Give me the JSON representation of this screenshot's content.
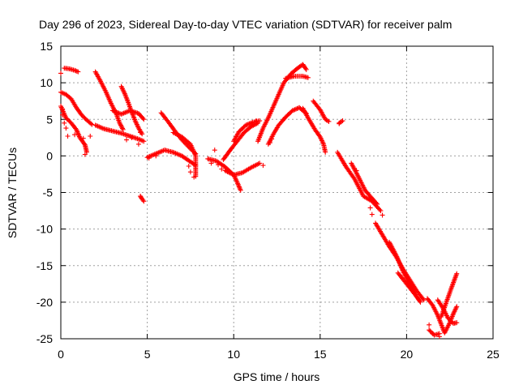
{
  "chart_data": {
    "type": "scatter",
    "title": "Day 296 of 2023, Sidereal Day-to-day VTEC variation (SDTVAR) for receiver palm",
    "xlabel": "GPS time / hours",
    "ylabel": "SDTVAR / TECUs",
    "xlim": [
      0,
      25
    ],
    "ylim": [
      -25,
      15
    ],
    "x_ticks": [
      0,
      5,
      10,
      15,
      20,
      25
    ],
    "y_ticks": [
      -25,
      -20,
      -15,
      -10,
      -5,
      0,
      5,
      10,
      15
    ],
    "grid": true,
    "legend": "none",
    "marker": "+",
    "series": [
      {
        "name": "SDTVAR",
        "color": "#ff0000",
        "segments": [
          [
            [
              0.0,
              6.8
            ],
            [
              0.3,
              5.2
            ],
            [
              0.6,
              4.5
            ],
            [
              0.9,
              3.6
            ],
            [
              1.1,
              2.5
            ],
            [
              1.4,
              1.5
            ],
            [
              1.5,
              0.5
            ]
          ],
          [
            [
              0.0,
              8.7
            ],
            [
              0.3,
              8.4
            ],
            [
              0.6,
              7.8
            ],
            [
              0.9,
              6.6
            ],
            [
              1.2,
              5.6
            ],
            [
              1.5,
              4.9
            ],
            [
              1.8,
              4.3
            ]
          ],
          [
            [
              0.2,
              12.0
            ],
            [
              0.5,
              11.9
            ],
            [
              0.8,
              11.7
            ],
            [
              1.0,
              11.5
            ]
          ],
          [
            [
              2.0,
              4.2
            ],
            [
              2.5,
              3.7
            ],
            [
              3.0,
              3.4
            ],
            [
              3.5,
              3.1
            ],
            [
              4.0,
              2.7
            ],
            [
              4.5,
              2.3
            ],
            [
              4.8,
              2.0
            ]
          ],
          [
            [
              2.0,
              11.5
            ],
            [
              2.3,
              10.2
            ],
            [
              2.6,
              8.8
            ],
            [
              2.9,
              7.2
            ],
            [
              3.2,
              5.8
            ],
            [
              3.4,
              4.5
            ],
            [
              3.6,
              3.6
            ]
          ],
          [
            [
              3.5,
              9.5
            ],
            [
              3.7,
              8.5
            ],
            [
              3.9,
              7.3
            ],
            [
              4.1,
              6.0
            ],
            [
              4.3,
              4.8
            ],
            [
              4.5,
              3.8
            ],
            [
              4.7,
              3.0
            ]
          ],
          [
            [
              3.0,
              6.2
            ],
            [
              3.5,
              5.7
            ],
            [
              4.0,
              6.2
            ],
            [
              4.5,
              5.8
            ],
            [
              4.8,
              5.0
            ]
          ],
          [
            [
              4.6,
              -5.5
            ],
            [
              4.7,
              -5.9
            ],
            [
              4.8,
              -6.2
            ]
          ],
          [
            [
              5.0,
              -0.2
            ],
            [
              5.5,
              0.3
            ],
            [
              6.0,
              0.8
            ],
            [
              6.5,
              0.5
            ],
            [
              7.0,
              0.0
            ],
            [
              7.5,
              -0.8
            ],
            [
              7.8,
              -1.3
            ]
          ],
          [
            [
              5.8,
              5.9
            ],
            [
              6.2,
              4.7
            ],
            [
              6.6,
              3.4
            ],
            [
              7.0,
              2.2
            ],
            [
              7.4,
              1.2
            ],
            [
              7.8,
              0.3
            ]
          ],
          [
            [
              6.5,
              3.2
            ],
            [
              7.0,
              2.6
            ],
            [
              7.5,
              1.6
            ],
            [
              7.8,
              0.0
            ],
            [
              7.8,
              -2.8
            ]
          ],
          [
            [
              8.5,
              -0.4
            ],
            [
              9.0,
              -0.7
            ],
            [
              9.5,
              -1.5
            ],
            [
              10.0,
              -2.6
            ],
            [
              10.2,
              -3.6
            ],
            [
              10.4,
              -4.7
            ]
          ],
          [
            [
              9.5,
              -2.0
            ],
            [
              10.0,
              -2.6
            ],
            [
              10.5,
              -2.3
            ],
            [
              11.0,
              -1.6
            ],
            [
              11.5,
              -1.0
            ]
          ],
          [
            [
              10.0,
              2.0
            ],
            [
              10.3,
              3.3
            ],
            [
              10.7,
              4.2
            ],
            [
              11.1,
              4.6
            ],
            [
              11.5,
              4.8
            ]
          ],
          [
            [
              9.4,
              -0.5
            ],
            [
              9.8,
              0.8
            ],
            [
              10.2,
              2.0
            ],
            [
              10.6,
              3.2
            ],
            [
              11.0,
              4.0
            ],
            [
              11.4,
              4.5
            ]
          ],
          [
            [
              11.4,
              2.0
            ],
            [
              11.7,
              3.8
            ],
            [
              12.0,
              5.2
            ],
            [
              12.3,
              6.8
            ],
            [
              12.6,
              8.4
            ],
            [
              12.9,
              10.0
            ],
            [
              13.3,
              11.2
            ],
            [
              13.7,
              12.0
            ],
            [
              14.0,
              12.5
            ],
            [
              14.2,
              11.8
            ]
          ],
          [
            [
              12.0,
              1.6
            ],
            [
              12.3,
              3.0
            ],
            [
              12.6,
              4.2
            ],
            [
              13.0,
              5.3
            ],
            [
              13.4,
              6.2
            ],
            [
              13.8,
              6.6
            ],
            [
              14.2,
              5.8
            ]
          ],
          [
            [
              13.0,
              10.6
            ],
            [
              13.5,
              10.9
            ],
            [
              14.0,
              10.9
            ],
            [
              14.3,
              10.7
            ]
          ],
          [
            [
              14.0,
              6.5
            ],
            [
              14.3,
              5.2
            ],
            [
              14.7,
              3.6
            ],
            [
              15.0,
              2.6
            ],
            [
              15.2,
              1.6
            ],
            [
              15.3,
              0.5
            ]
          ],
          [
            [
              14.6,
              7.5
            ],
            [
              15.0,
              6.3
            ],
            [
              15.3,
              5.0
            ],
            [
              15.5,
              4.7
            ]
          ],
          [
            [
              16.1,
              4.5
            ],
            [
              16.3,
              4.8
            ]
          ],
          [
            [
              16.0,
              0.5
            ],
            [
              16.5,
              -1.5
            ],
            [
              17.0,
              -3.2
            ],
            [
              17.5,
              -5.5
            ],
            [
              18.0,
              -6.2
            ],
            [
              18.5,
              -7.5
            ]
          ],
          [
            [
              16.8,
              -1.0
            ],
            [
              17.2,
              -2.8
            ],
            [
              17.6,
              -4.7
            ],
            [
              18.0,
              -5.8
            ],
            [
              18.3,
              -6.6
            ]
          ],
          [
            [
              18.2,
              -9.2
            ],
            [
              18.6,
              -10.8
            ],
            [
              19.0,
              -12.4
            ],
            [
              19.4,
              -13.8
            ],
            [
              19.8,
              -15.5
            ],
            [
              20.2,
              -17.0
            ],
            [
              20.6,
              -18.5
            ],
            [
              21.0,
              -19.7
            ]
          ],
          [
            [
              19.0,
              -11.8
            ],
            [
              19.4,
              -13.6
            ],
            [
              19.8,
              -15.8
            ],
            [
              20.2,
              -17.6
            ],
            [
              20.6,
              -19.3
            ],
            [
              20.8,
              -20.0
            ]
          ],
          [
            [
              19.5,
              -16.0
            ],
            [
              19.9,
              -17.2
            ],
            [
              20.3,
              -18.4
            ],
            [
              20.7,
              -19.6
            ]
          ],
          [
            [
              21.2,
              -19.5
            ],
            [
              21.5,
              -20.4
            ],
            [
              21.8,
              -21.8
            ],
            [
              22.0,
              -23.0
            ],
            [
              22.2,
              -24.2
            ],
            [
              22.5,
              -22.8
            ],
            [
              22.7,
              -21.6
            ],
            [
              22.9,
              -20.6
            ]
          ],
          [
            [
              21.8,
              -19.7
            ],
            [
              22.1,
              -20.8
            ],
            [
              22.4,
              -22.2
            ],
            [
              22.7,
              -22.9
            ],
            [
              22.9,
              -22.8
            ]
          ],
          [
            [
              22.0,
              -22.0
            ],
            [
              22.3,
              -20.0
            ],
            [
              22.6,
              -18.0
            ],
            [
              22.9,
              -16.1
            ]
          ],
          [
            [
              21.3,
              -23.8
            ],
            [
              21.6,
              -24.5
            ],
            [
              21.9,
              -24.3
            ]
          ]
        ],
        "scatter": [
          [
            0.0,
            11.3
          ],
          [
            0.1,
            6.4
          ],
          [
            0.1,
            5.6
          ],
          [
            0.2,
            4.5
          ],
          [
            0.3,
            3.8
          ],
          [
            0.4,
            2.7
          ],
          [
            0.8,
            2.9
          ],
          [
            1.3,
            2.4
          ],
          [
            1.7,
            2.7
          ],
          [
            1.4,
            0.2
          ],
          [
            4.6,
            3.2
          ],
          [
            4.1,
            2.5
          ],
          [
            4.5,
            1.6
          ],
          [
            3.8,
            2.2
          ],
          [
            5.1,
            -0.3
          ],
          [
            5.5,
            0.0
          ],
          [
            7.4,
            -1.4
          ],
          [
            7.5,
            -2.2
          ],
          [
            7.7,
            -2.9
          ],
          [
            8.9,
            0.8
          ],
          [
            9.1,
            -1.2
          ],
          [
            9.3,
            -1.8
          ],
          [
            8.7,
            -1.0
          ],
          [
            11.7,
            -1.3
          ],
          [
            12.1,
            1.8
          ],
          [
            12.2,
            2.3
          ],
          [
            11.3,
            4.8
          ],
          [
            16.1,
            4.4
          ],
          [
            17.1,
            -2.0
          ],
          [
            17.9,
            -7.1
          ],
          [
            18.0,
            -8.0
          ],
          [
            18.6,
            -8.1
          ],
          [
            21.5,
            -24.3
          ],
          [
            21.9,
            -24.7
          ],
          [
            21.3,
            -23.1
          ]
        ]
      }
    ]
  }
}
